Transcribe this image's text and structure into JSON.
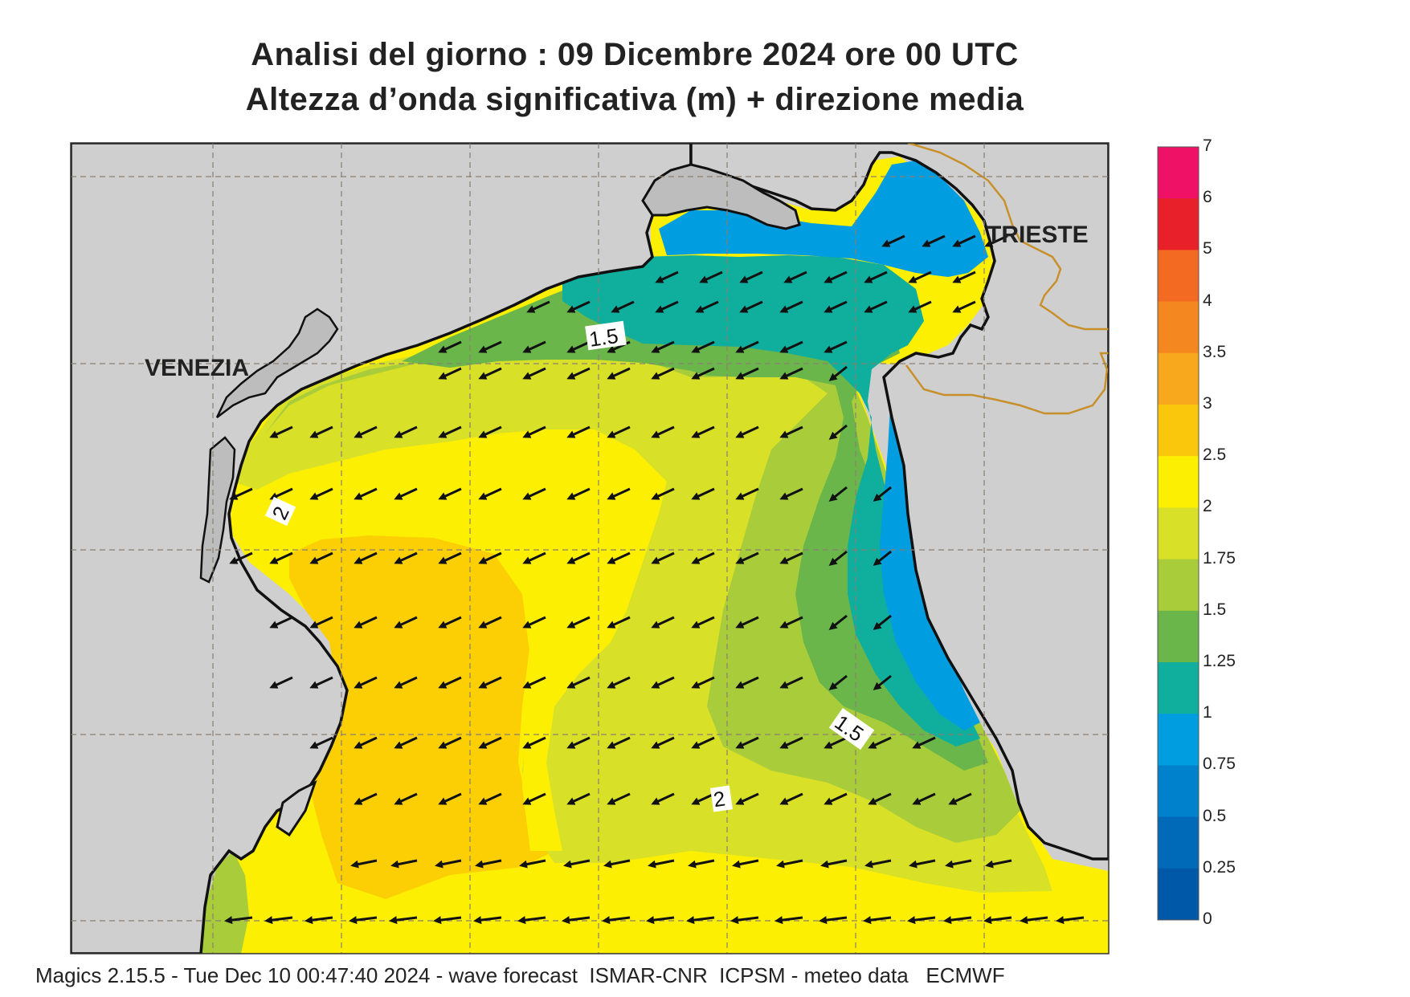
{
  "title": {
    "line1": "Analisi del giorno :  09 Dicembre  2024   ore 00 UTC",
    "line2": "Altezza d’onda significativa (m) + direzione media"
  },
  "cities": {
    "venezia": "VENEZIA",
    "trieste": "TRIESTE"
  },
  "contour_labels": [
    "1.5",
    "2",
    "1.5",
    "2"
  ],
  "legend": {
    "levels": [
      "7",
      "6",
      "5",
      "4",
      "3.5",
      "3",
      "2.5",
      "2",
      "1.75",
      "1.5",
      "1.25",
      "1",
      "0.75",
      "0.5",
      "0.25",
      "0"
    ],
    "colors": [
      "#ee1166",
      "#e8202a",
      "#f36b23",
      "#f58720",
      "#f7a81c",
      "#fbc70c",
      "#fdef02",
      "#d8e028",
      "#a9cd3a",
      "#6ab64a",
      "#10ae9d",
      "#009ee0",
      "#0081cc",
      "#0069b8",
      "#0058a8"
    ]
  },
  "footer": "Magics 2.15.5 - Tue Dec 10 00:47:40 2024 - wave forecast  ISMAR-CNR  ICPSM - meteo data   ECMWF",
  "colors": {
    "land": "#cfcfd0",
    "coast": "#111111",
    "border": "#c8902a",
    "grid": "#8a7f70"
  }
}
